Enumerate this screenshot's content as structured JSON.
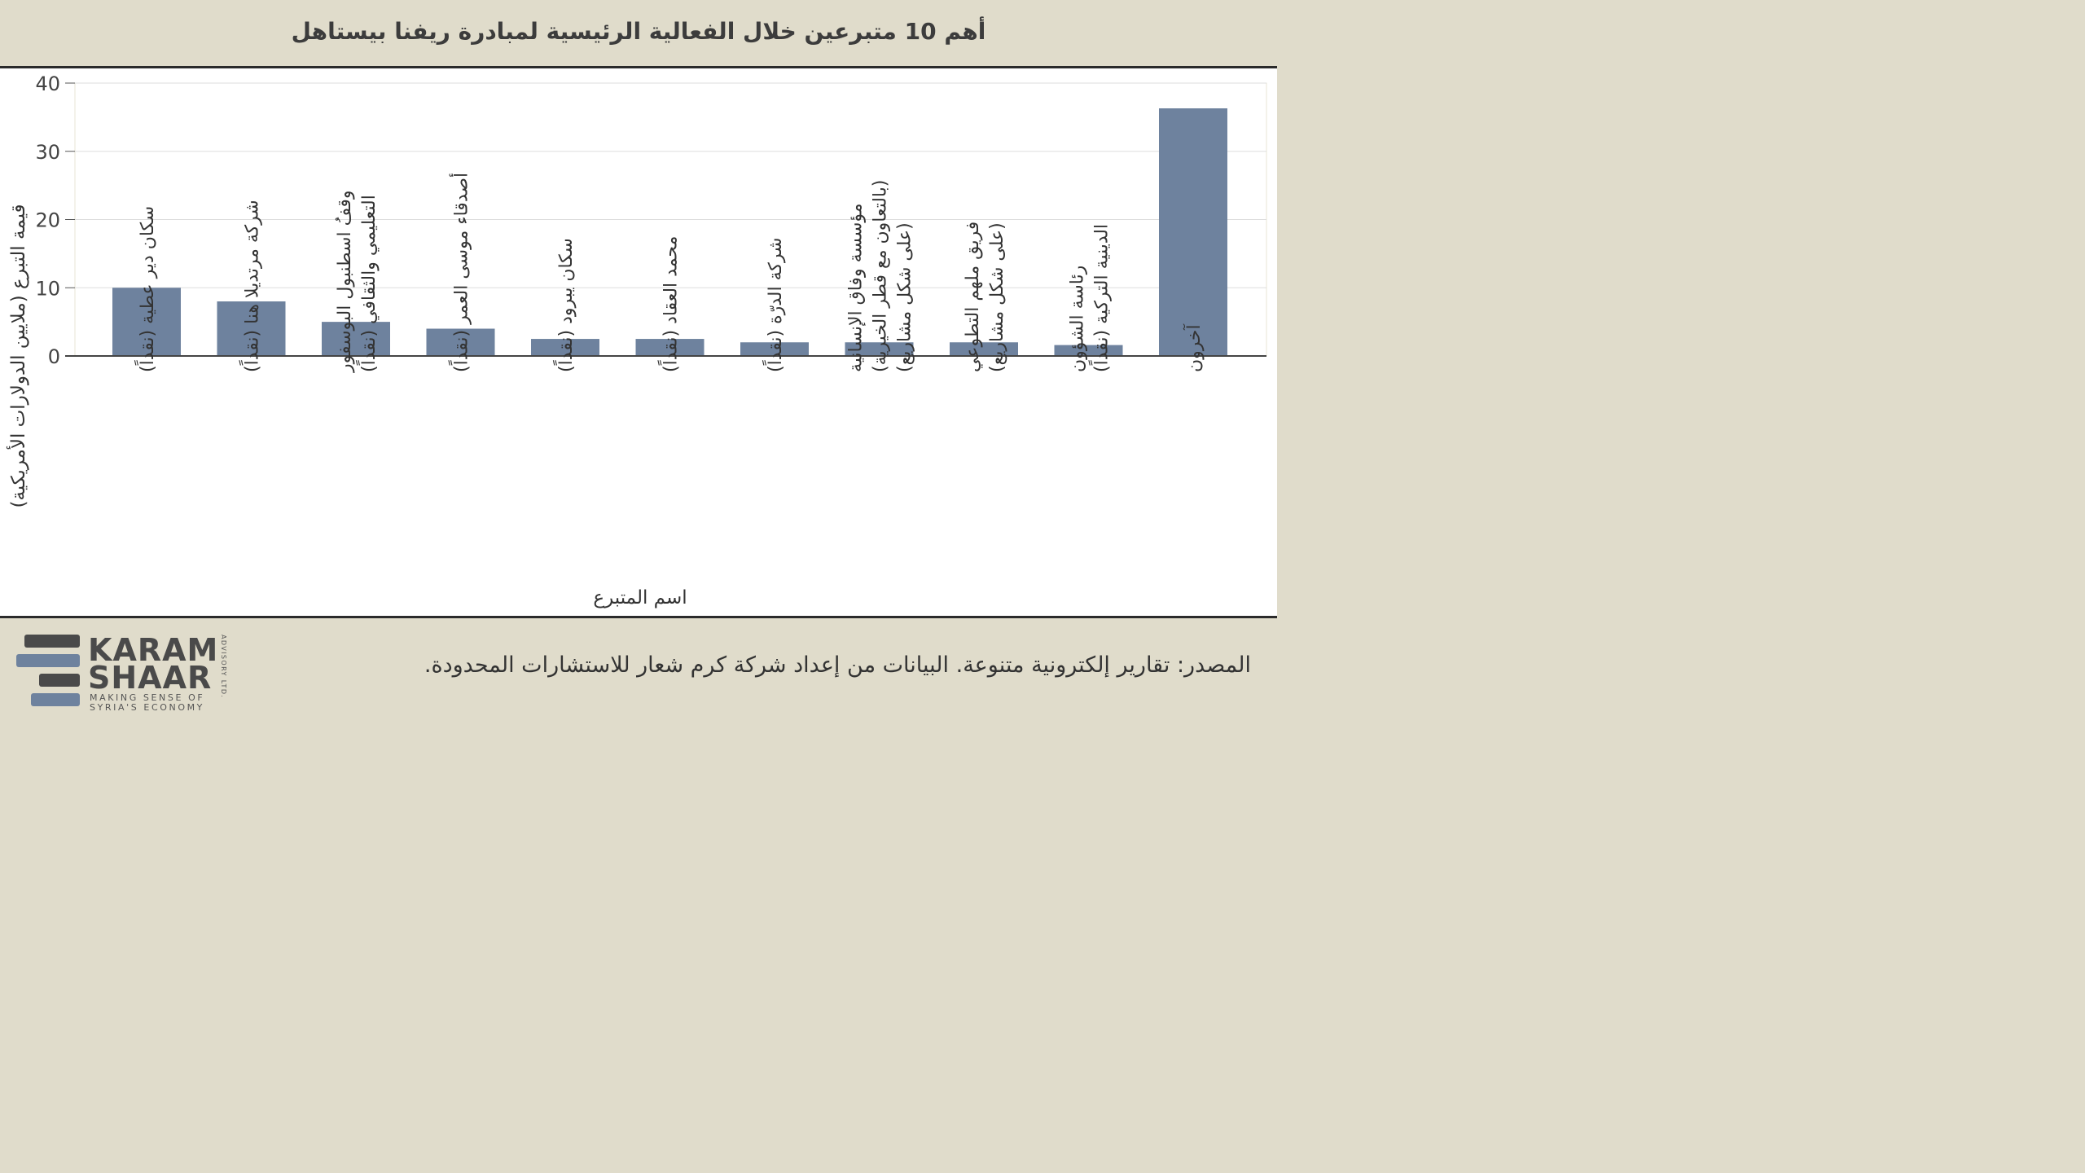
{
  "header": {
    "title": "أهم 10 متبرعين خلال الفعالية الرئيسية لمبادرة ريفنا بيستاهل"
  },
  "chart_data": {
    "type": "bar",
    "title": "أهم 10 متبرعين خلال الفعالية الرئيسية لمبادرة ريفنا بيستاهل",
    "xlabel": "اسم المتبرع",
    "ylabel": "قيمة التبرع (ملايين الدولارات الأمريكية)",
    "ylim": [
      0,
      40
    ],
    "yticks": [
      "0",
      "10",
      "20",
      "30",
      "40"
    ],
    "grid": true,
    "bar_color": "#6e829e",
    "categories": [
      [
        "سكان دير عطية (نقداً)"
      ],
      [
        "شركة مرتديلا هنا (نقداً)"
      ],
      [
        "وقفُ اسطنبول البوسفور",
        "التعليمي والثقافي (نقداً)"
      ],
      [
        "أصدقاء موسى العمر (نقداً)"
      ],
      [
        "سكان يبرود (نقداً)"
      ],
      [
        "محمد العقاد (نقداً)"
      ],
      [
        "شركة الدرّة (نقداً)"
      ],
      [
        "مؤسسة وفاق الإنسانية",
        "(بالتعاون مع قطر الخيرية)",
        "(على شكل مشاريع)"
      ],
      [
        "فريق ملهم التطوعي",
        "(على شكل مشاريع)"
      ],
      [
        "رئاسة الشؤون",
        "الدينية التركية (نقداً)"
      ],
      [
        "آخرون"
      ]
    ],
    "values": [
      10.0,
      8.0,
      5.0,
      4.0,
      2.5,
      2.5,
      2.0,
      2.0,
      2.0,
      1.6,
      36.3
    ]
  },
  "footer": {
    "source": "المصدر: تقارير إلكترونية متنوعة. البيانات من إعداد شركة كرم شعار للاستشارات المحدودة.",
    "logo": {
      "line1": "KARAM",
      "line2": "SHAAR",
      "tagline1": "MAKING SENSE OF",
      "tagline2": "SYRIA'S ECONOMY",
      "side": "ADVISORY LTD.",
      "bar_colors": [
        "#4a4a4a",
        "#6e829e"
      ]
    }
  }
}
